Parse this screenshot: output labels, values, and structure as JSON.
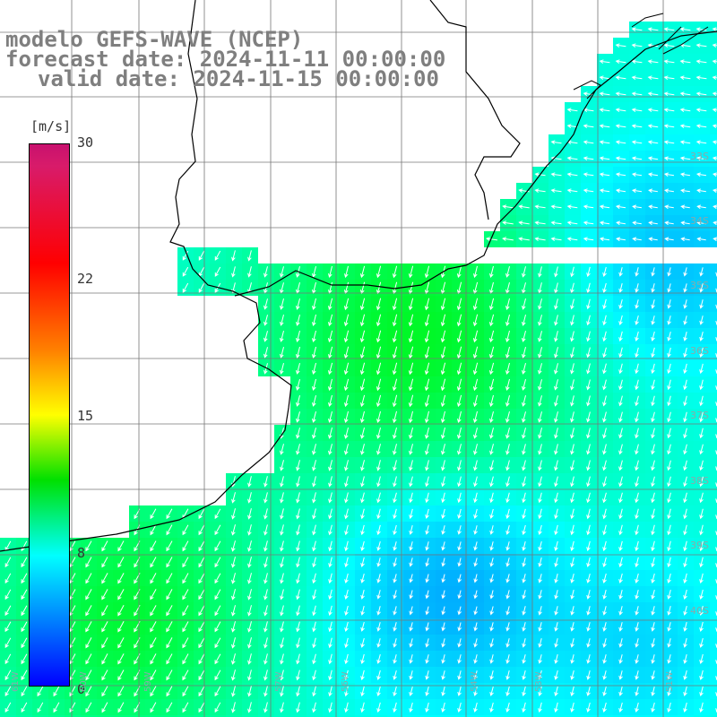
{
  "title": {
    "line1": "modelo GEFS-WAVE (NCEP)",
    "line2": "forecast date: 2024-11-11 00:00:00",
    "line3": "valid date: 2024-11-15 00:00:00"
  },
  "colorbar": {
    "unit": "[m/s]",
    "ticks": [
      "30",
      "22",
      "15",
      "8",
      "0"
    ]
  },
  "colors": {
    "land": "#ffffff",
    "coastline": "#000000",
    "grid": "#7f7f7f",
    "arrows": "#ffffff"
  },
  "lat_labels": [
    "33S",
    "34S",
    "35S",
    "36S",
    "37S",
    "38S",
    "39S",
    "40S"
  ],
  "lon_labels": [
    "61W",
    "60W",
    "59W",
    "57W",
    "56W",
    "54W",
    "53W",
    "51W"
  ],
  "field": {
    "variable": "wind speed",
    "units": "m/s",
    "scale": [
      0,
      30
    ]
  }
}
